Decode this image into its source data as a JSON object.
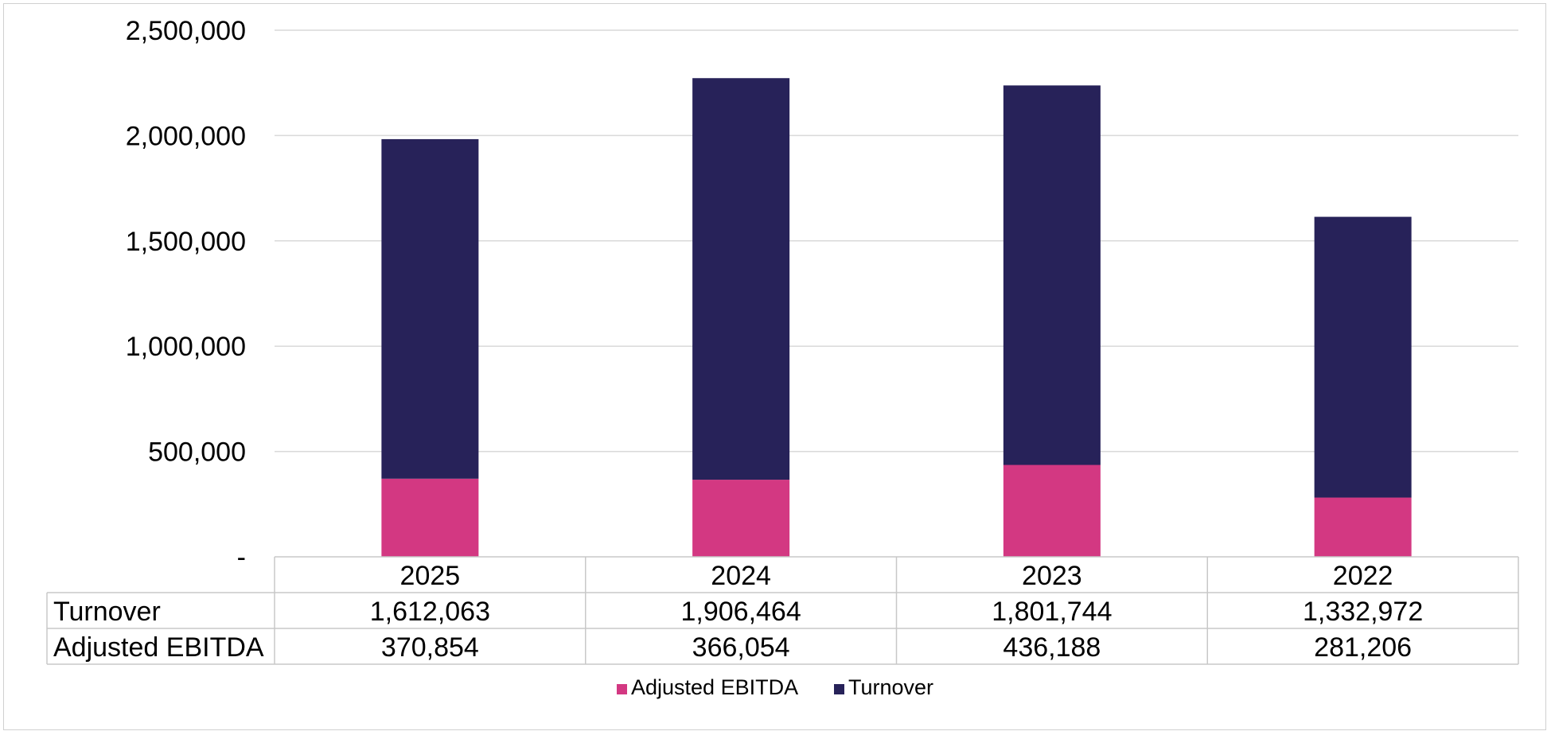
{
  "chart_data": {
    "type": "bar",
    "stacked": true,
    "title": "",
    "xlabel": "",
    "ylabel": "",
    "ylim": [
      0,
      2500000
    ],
    "y_ticks": [
      "-",
      "500,000",
      "1,000,000",
      "1,500,000",
      "2,000,000",
      "2,500,000"
    ],
    "y_tick_values": [
      0,
      500000,
      1000000,
      1500000,
      2000000,
      2500000
    ],
    "grid": true,
    "legend_position": "bottom",
    "categories": [
      "2025",
      "2024",
      "2023",
      "2022"
    ],
    "series": [
      {
        "name": "Adjusted EBITDA",
        "color": "#d33882",
        "values": [
          370854,
          366054,
          436188,
          281206
        ],
        "labels": [
          "370,854",
          "366,054",
          "436,188",
          "281,206"
        ]
      },
      {
        "name": "Turnover",
        "color": "#272259",
        "values": [
          1612063,
          1906464,
          1801744,
          1332972
        ],
        "labels": [
          "1,612,063",
          "1,906,464",
          "1,801,744",
          "1,332,972"
        ]
      }
    ],
    "data_table": {
      "row_order": [
        "Turnover",
        "Adjusted EBITDA"
      ]
    }
  }
}
